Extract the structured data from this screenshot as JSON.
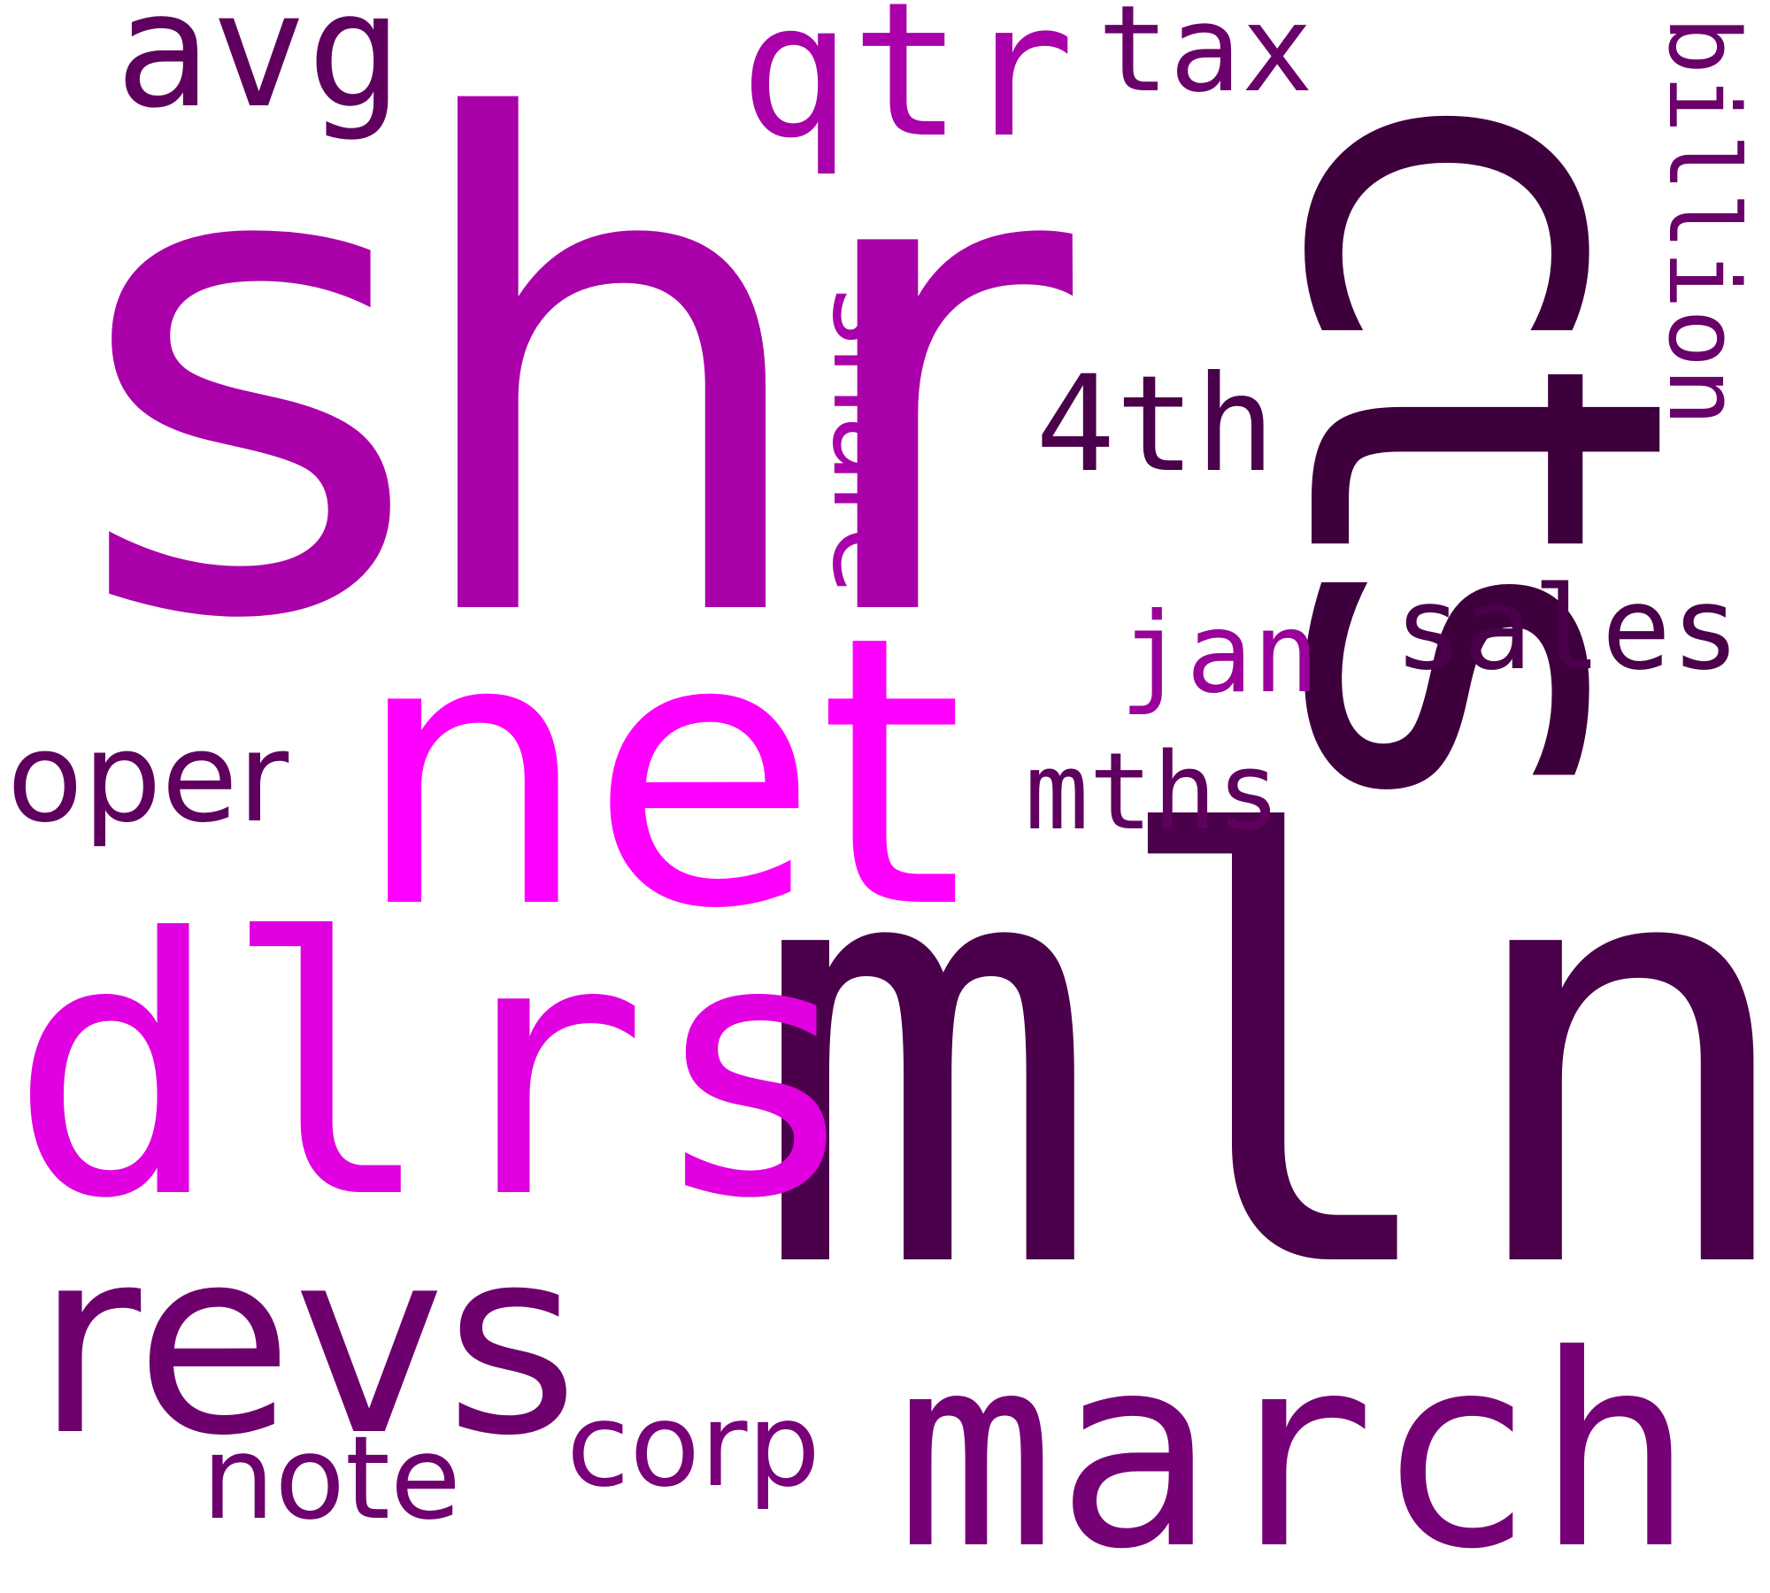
{
  "words": {
    "shr": "shr",
    "cts": "cts",
    "net": "net",
    "mln": "mln",
    "dlrs": "dlrs",
    "revs": "revs",
    "march": "march",
    "qtr": "qtr",
    "avg": "avg",
    "tax": "tax",
    "billion": "billion",
    "share": "share",
    "fourth": "4th",
    "jan": "jan",
    "sales": "sales",
    "oper": "oper",
    "mths": "mths",
    "note": "note",
    "corp": "corp"
  },
  "colors": {
    "shr": "#AA00AA",
    "cts": "#3D003D",
    "net": "#FF00FF",
    "mln": "#4A004A",
    "dlrs": "#E000E0",
    "revs": "#6E006E",
    "march": "#760076",
    "qtr": "#AA00AA",
    "avg": "#5F005F",
    "tax": "#6A006A",
    "billion": "#6A006A",
    "share": "#AA00AA",
    "fourth": "#4A004A",
    "jan": "#9A009A",
    "sales": "#4A004A",
    "oper": "#5F005F",
    "mths": "#5F005F",
    "note": "#6E006E",
    "corp": "#7A007A"
  }
}
